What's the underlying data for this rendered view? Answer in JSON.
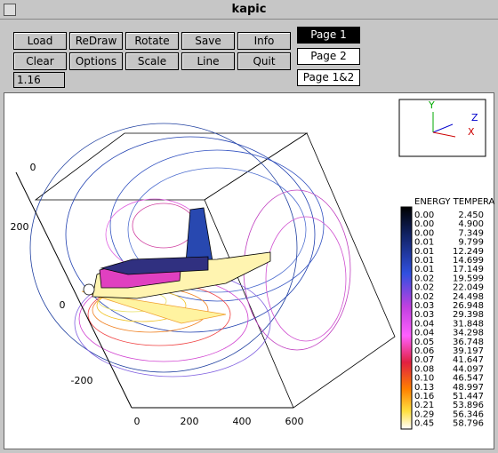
{
  "window": {
    "title": "kapic"
  },
  "toolbar": {
    "buttons": [
      [
        "Load",
        "ReDraw",
        "Rotate",
        "Save",
        "Info"
      ],
      [
        "Clear",
        "Options",
        "Scale",
        "Line",
        "Quit"
      ]
    ],
    "status": "1.16",
    "pages": [
      "Page 1",
      "Page 2",
      "Page 1&2"
    ]
  },
  "plot": {
    "axis_labels": [
      "0",
      "200",
      "0",
      "-200"
    ],
    "bottom_labels": [
      "0",
      "200",
      "400",
      "600"
    ],
    "inset_axes": [
      "Y",
      "Z",
      "X"
    ]
  },
  "colorbar": {
    "title": "ENERGY TEMPERA",
    "rows": [
      [
        "0.00",
        "2.450"
      ],
      [
        "0.00",
        "4.900"
      ],
      [
        "0.00",
        "7.349"
      ],
      [
        "0.01",
        "9.799"
      ],
      [
        "0.01",
        "12.249"
      ],
      [
        "0.01",
        "14.699"
      ],
      [
        "0.01",
        "17.149"
      ],
      [
        "0.02",
        "19.599"
      ],
      [
        "0.02",
        "22.049"
      ],
      [
        "0.02",
        "24.498"
      ],
      [
        "0.03",
        "26.948"
      ],
      [
        "0.03",
        "29.398"
      ],
      [
        "0.04",
        "31.848"
      ],
      [
        "0.04",
        "34.298"
      ],
      [
        "0.05",
        "36.748"
      ],
      [
        "0.06",
        "39.197"
      ],
      [
        "0.07",
        "41.647"
      ],
      [
        "0.08",
        "44.097"
      ],
      [
        "0.10",
        "46.547"
      ],
      [
        "0.13",
        "48.997"
      ],
      [
        "0.16",
        "51.447"
      ],
      [
        "0.21",
        "53.896"
      ],
      [
        "0.29",
        "56.346"
      ],
      [
        "0.45",
        "58.796"
      ]
    ]
  }
}
